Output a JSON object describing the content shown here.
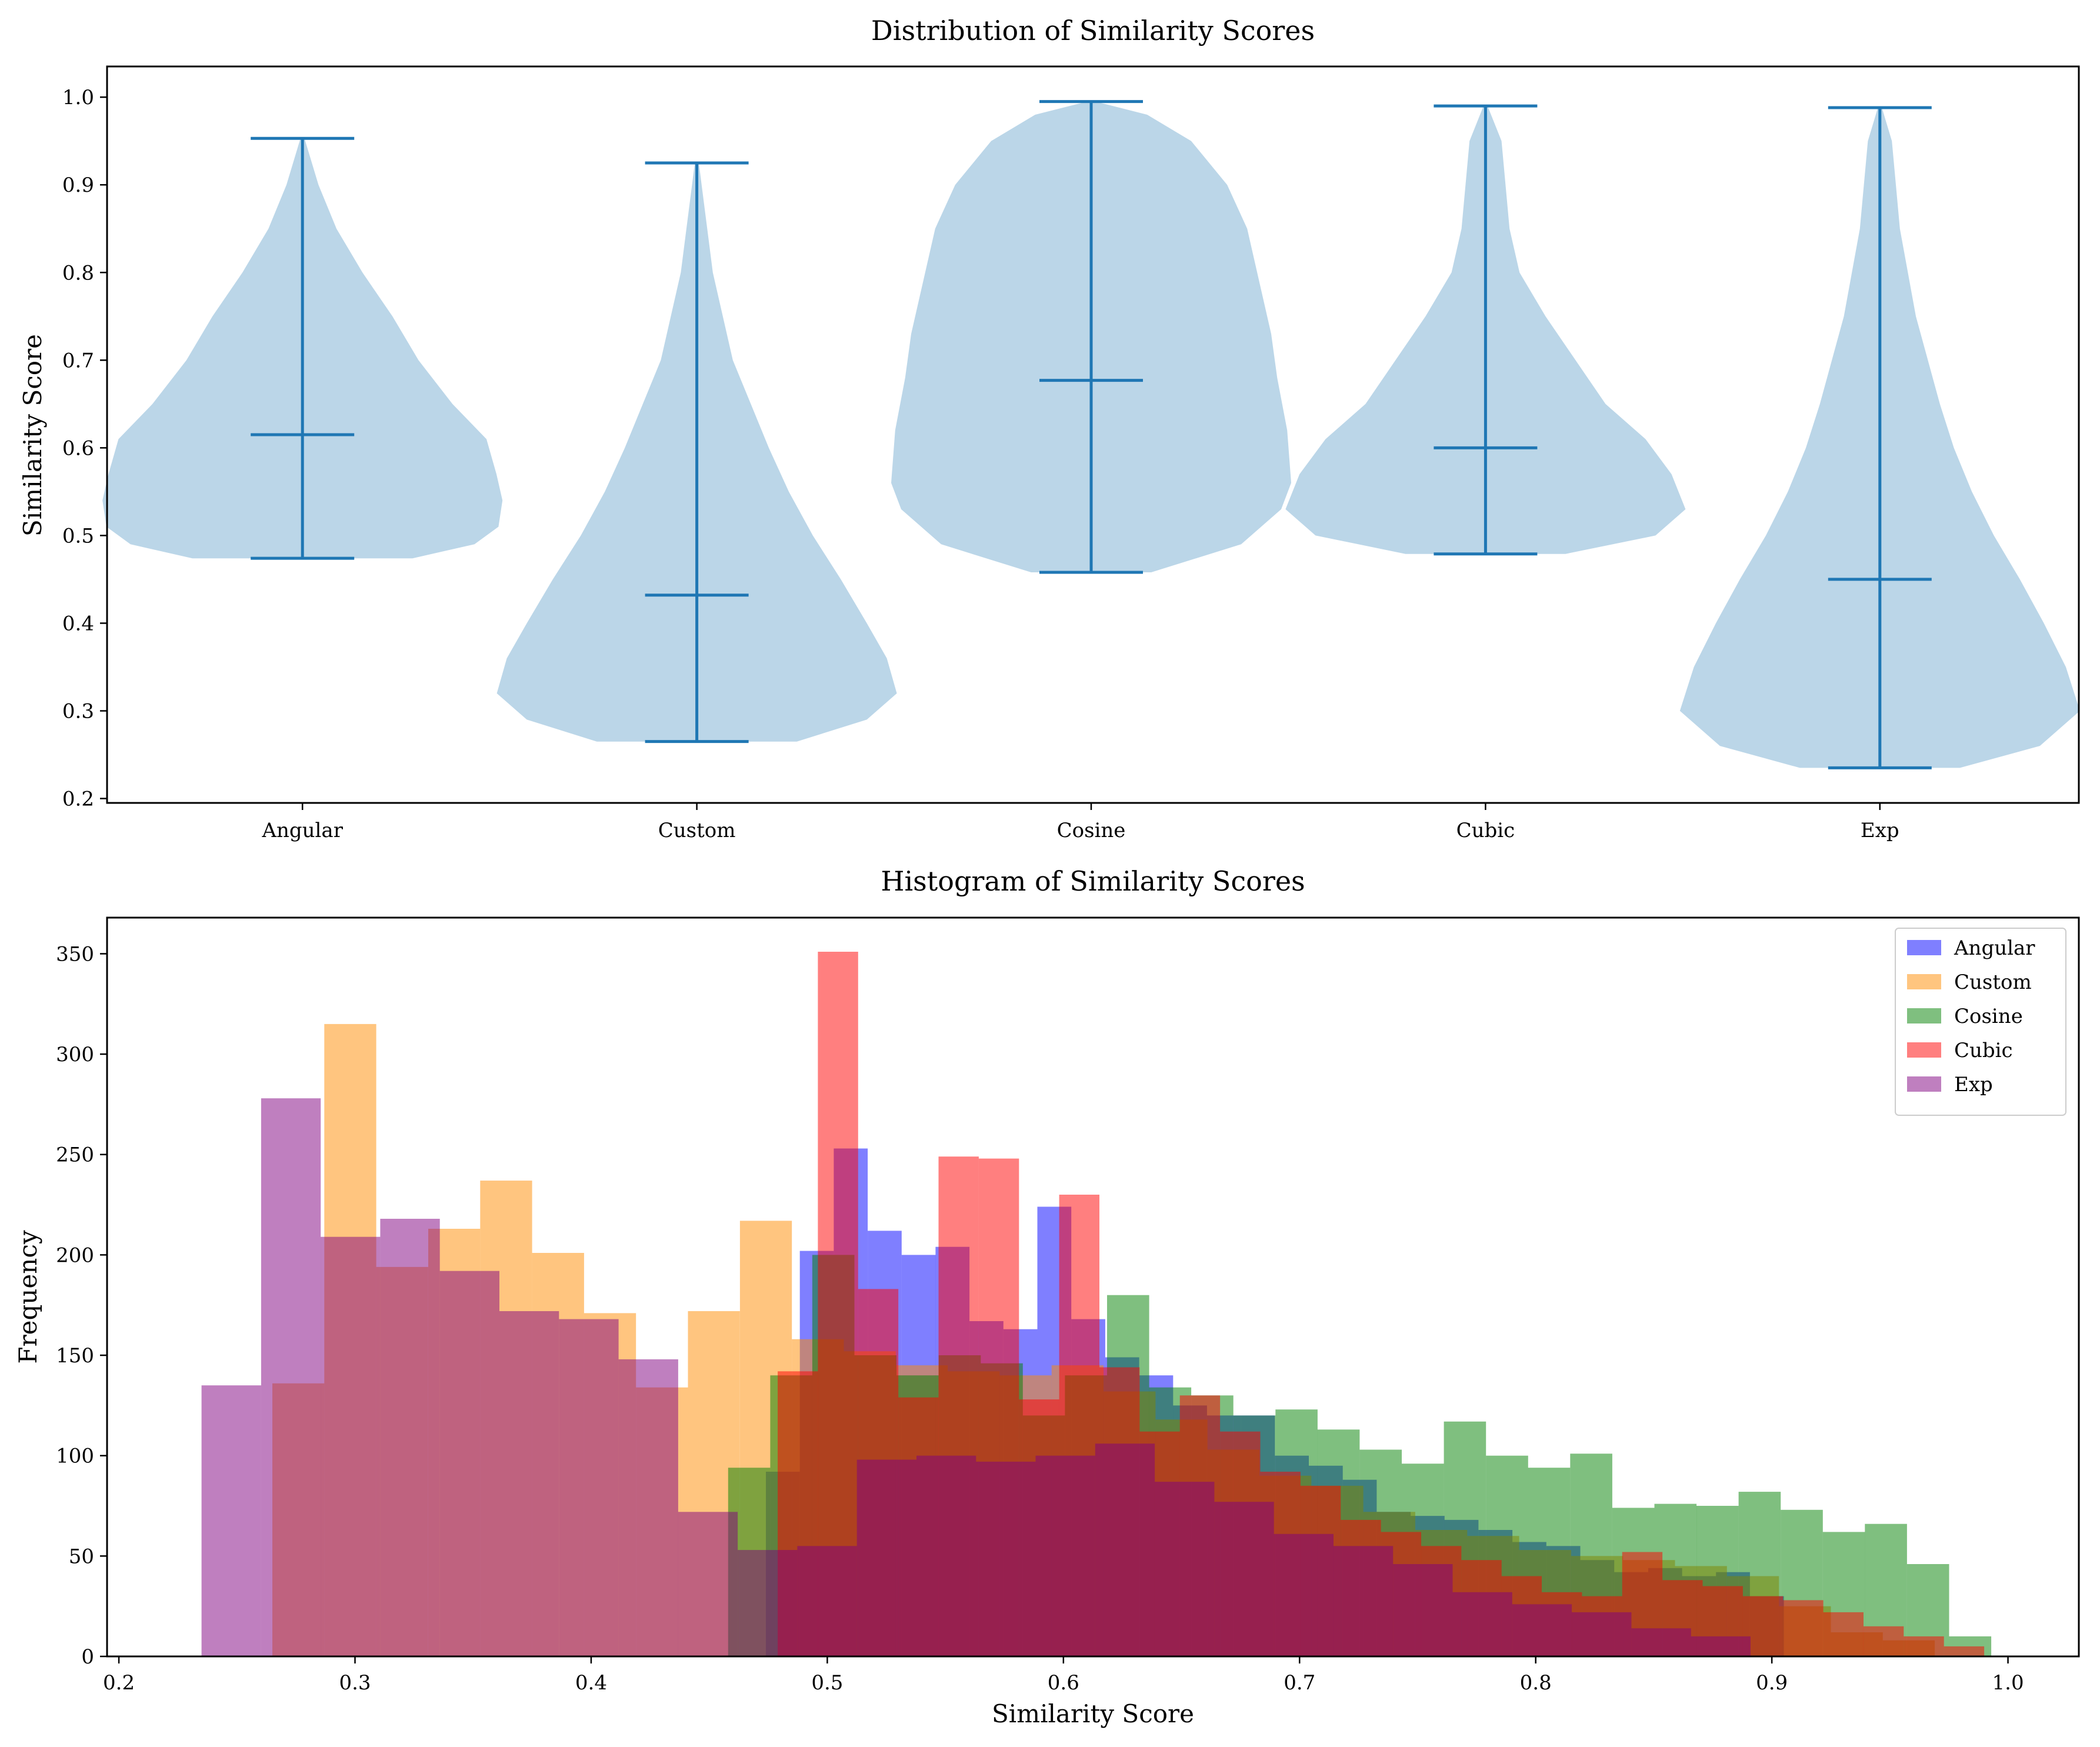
{
  "colors": {
    "violin_body": "#1f77b4",
    "violin_lines": "#1f77b4",
    "Angular": "#0000ff",
    "Custom": "#ff8c00",
    "Cosine": "#008000",
    "Cubic": "#ff0000",
    "Exp": "#800080"
  },
  "chart_data": [
    {
      "type": "violin",
      "title": "Distribution of Similarity Scores",
      "xlabel": "",
      "ylabel": "Similarity Score",
      "ylim": [
        0.195,
        1.035
      ],
      "yticks": [
        "0.2",
        "0.3",
        "0.4",
        "0.5",
        "0.6",
        "0.7",
        "0.8",
        "0.9",
        "1.0"
      ],
      "categories": [
        "Angular",
        "Custom",
        "Cosine",
        "Cubic",
        "Exp"
      ],
      "series": [
        {
          "name": "Angular",
          "min": 0.474,
          "median": 0.615,
          "max": 0.953,
          "density": [
            [
              0.474,
              0.55
            ],
            [
              0.49,
              0.86
            ],
            [
              0.51,
              0.98
            ],
            [
              0.54,
              1.0
            ],
            [
              0.57,
              0.97
            ],
            [
              0.61,
              0.92
            ],
            [
              0.65,
              0.75
            ],
            [
              0.7,
              0.58
            ],
            [
              0.75,
              0.45
            ],
            [
              0.8,
              0.3
            ],
            [
              0.85,
              0.17
            ],
            [
              0.9,
              0.08
            ],
            [
              0.953,
              0.01
            ]
          ]
        },
        {
          "name": "Custom",
          "min": 0.265,
          "median": 0.432,
          "max": 0.925,
          "density": [
            [
              0.265,
              0.5
            ],
            [
              0.29,
              0.85
            ],
            [
              0.32,
              1.0
            ],
            [
              0.36,
              0.95
            ],
            [
              0.4,
              0.85
            ],
            [
              0.45,
              0.72
            ],
            [
              0.5,
              0.58
            ],
            [
              0.55,
              0.46
            ],
            [
              0.6,
              0.36
            ],
            [
              0.65,
              0.27
            ],
            [
              0.7,
              0.18
            ],
            [
              0.8,
              0.08
            ],
            [
              0.925,
              0.01
            ]
          ]
        },
        {
          "name": "Cosine",
          "min": 0.458,
          "median": 0.677,
          "max": 0.995,
          "density": [
            [
              0.458,
              0.3
            ],
            [
              0.49,
              0.75
            ],
            [
              0.53,
              0.95
            ],
            [
              0.56,
              1.0
            ],
            [
              0.62,
              0.98
            ],
            [
              0.68,
              0.93
            ],
            [
              0.73,
              0.9
            ],
            [
              0.78,
              0.85
            ],
            [
              0.85,
              0.78
            ],
            [
              0.9,
              0.68
            ],
            [
              0.95,
              0.5
            ],
            [
              0.98,
              0.28
            ],
            [
              0.995,
              0.02
            ]
          ]
        },
        {
          "name": "Cubic",
          "min": 0.479,
          "median": 0.6,
          "max": 0.99,
          "density": [
            [
              0.479,
              0.4
            ],
            [
              0.5,
              0.85
            ],
            [
              0.53,
              1.0
            ],
            [
              0.57,
              0.93
            ],
            [
              0.61,
              0.8
            ],
            [
              0.65,
              0.6
            ],
            [
              0.7,
              0.45
            ],
            [
              0.75,
              0.3
            ],
            [
              0.8,
              0.17
            ],
            [
              0.85,
              0.12
            ],
            [
              0.9,
              0.1
            ],
            [
              0.95,
              0.08
            ],
            [
              0.99,
              0.01
            ]
          ]
        },
        {
          "name": "Exp",
          "min": 0.235,
          "median": 0.45,
          "max": 0.988,
          "density": [
            [
              0.235,
              0.4
            ],
            [
              0.26,
              0.8
            ],
            [
              0.3,
              1.0
            ],
            [
              0.35,
              0.93
            ],
            [
              0.4,
              0.82
            ],
            [
              0.45,
              0.7
            ],
            [
              0.5,
              0.57
            ],
            [
              0.55,
              0.46
            ],
            [
              0.6,
              0.37
            ],
            [
              0.65,
              0.3
            ],
            [
              0.7,
              0.24
            ],
            [
              0.75,
              0.18
            ],
            [
              0.85,
              0.1
            ],
            [
              0.95,
              0.06
            ],
            [
              0.988,
              0.01
            ]
          ]
        }
      ]
    },
    {
      "type": "histogram",
      "title": "Histogram of Similarity Scores",
      "xlabel": "Similarity Score",
      "ylabel": "Frequency",
      "xlim": [
        0.195,
        1.03
      ],
      "ylim": [
        0,
        368
      ],
      "xticks": [
        "0.2",
        "0.3",
        "0.4",
        "0.5",
        "0.6",
        "0.7",
        "0.8",
        "0.9",
        "1.0"
      ],
      "yticks": [
        "0",
        "50",
        "100",
        "150",
        "200",
        "250",
        "300",
        "350"
      ],
      "legend_position": "top-right",
      "legend": [
        "Angular",
        "Custom",
        "Cosine",
        "Cubic",
        "Exp"
      ],
      "series": [
        {
          "name": "Angular",
          "bin_start": 0.474,
          "bin_width": 0.01437,
          "values": [
            92,
            202,
            253,
            212,
            200,
            204,
            167,
            163,
            224,
            168,
            149,
            140,
            125,
            120,
            120,
            100,
            95,
            88,
            72,
            70,
            68,
            63,
            57,
            55,
            48,
            42,
            44,
            40,
            42,
            30
          ]
        },
        {
          "name": "Custom",
          "bin_start": 0.265,
          "bin_width": 0.022,
          "values": [
            136,
            315,
            194,
            213,
            237,
            201,
            171,
            134,
            172,
            217,
            158,
            152,
            145,
            142,
            140,
            145,
            132,
            118,
            103,
            90,
            85,
            72,
            63,
            60,
            53,
            50,
            48,
            45,
            40,
            25,
            12,
            8
          ]
        },
        {
          "name": "Cosine",
          "bin_start": 0.458,
          "bin_width": 0.01783,
          "values": [
            94,
            140,
            200,
            150,
            140,
            150,
            146,
            120,
            140,
            180,
            134,
            130,
            120,
            123,
            113,
            103,
            96,
            117,
            100,
            94,
            101,
            74,
            76,
            75,
            82,
            73,
            62,
            66,
            46,
            10
          ]
        },
        {
          "name": "Cubic",
          "bin_start": 0.479,
          "bin_width": 0.01703,
          "values": [
            142,
            351,
            183,
            129,
            249,
            248,
            128,
            230,
            144,
            112,
            130,
            112,
            92,
            85,
            68,
            62,
            55,
            48,
            40,
            32,
            30,
            52,
            38,
            35,
            30,
            28,
            22,
            15,
            10,
            5
          ]
        },
        {
          "name": "Exp",
          "bin_start": 0.235,
          "bin_width": 0.02523,
          "values": [
            135,
            278,
            209,
            218,
            192,
            172,
            168,
            148,
            72,
            53,
            55,
            98,
            100,
            97,
            100,
            106,
            87,
            77,
            61,
            55,
            46,
            32,
            26,
            22,
            14,
            10
          ]
        }
      ]
    }
  ]
}
